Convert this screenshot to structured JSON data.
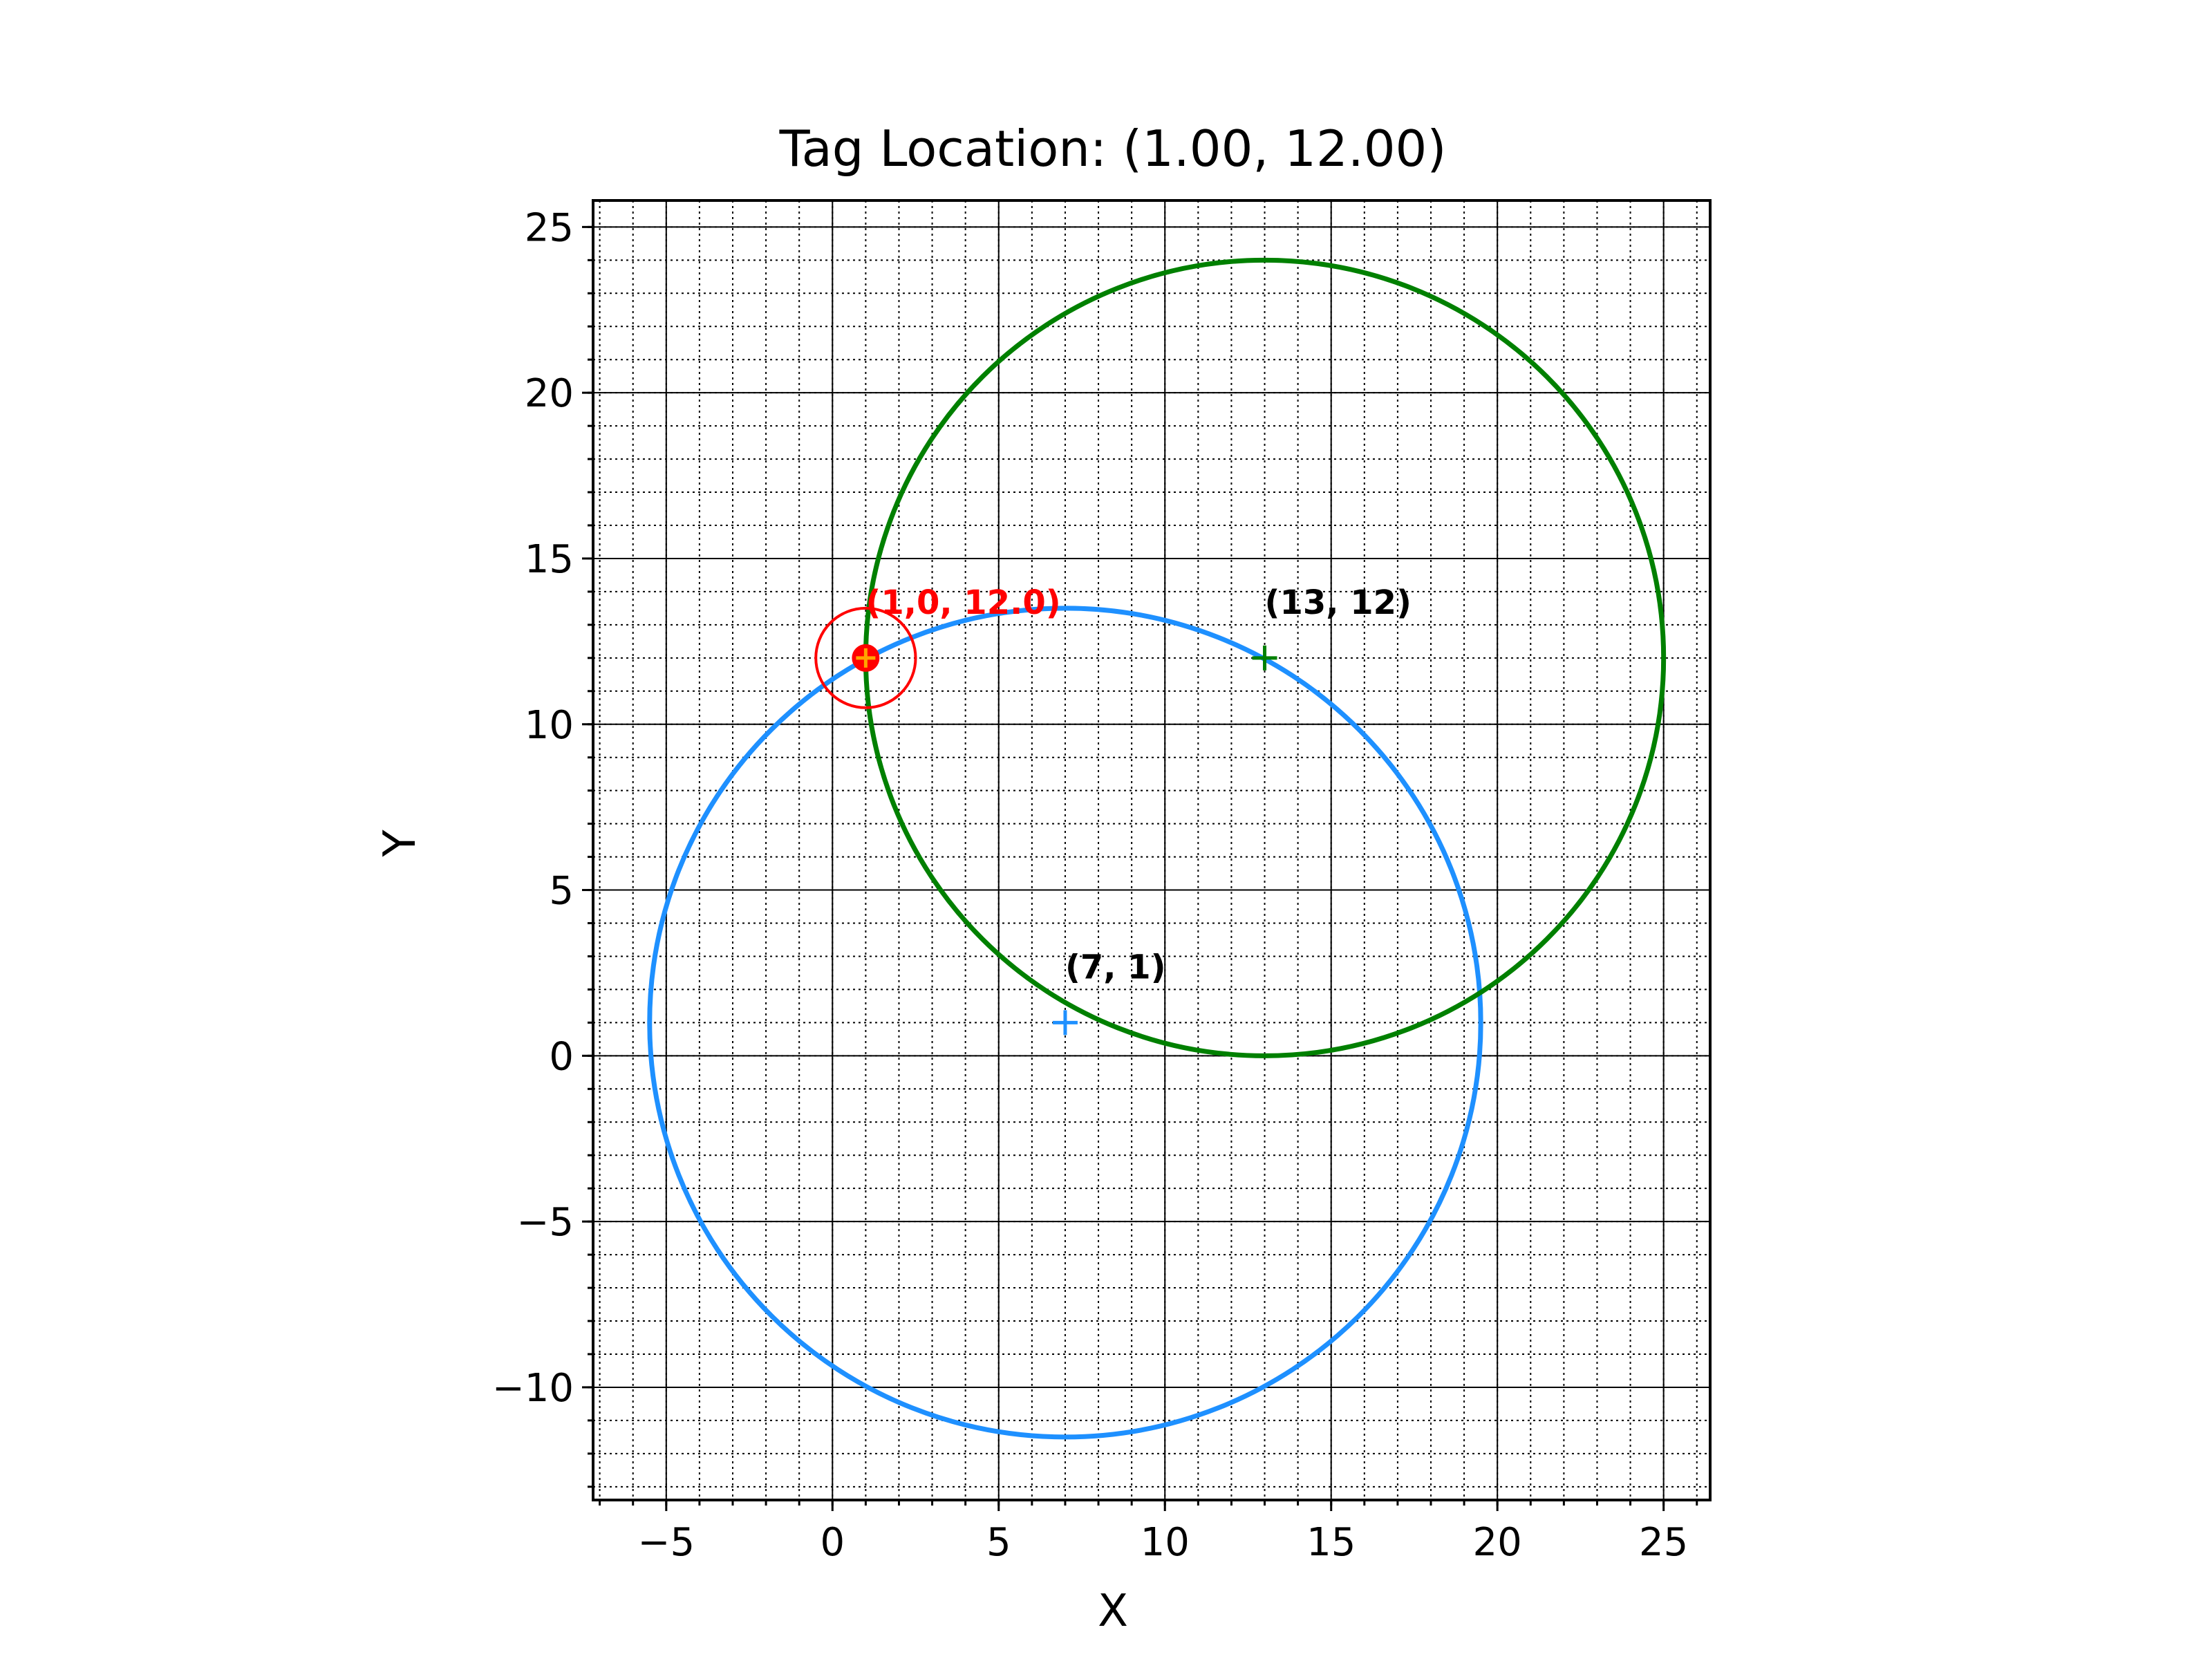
{
  "chart_data": {
    "type": "scatter",
    "title": "Tag Location: (1.00, 12.00)",
    "xlabel": "X",
    "ylabel": "Y",
    "xlim": [
      -7.2,
      26.4
    ],
    "ylim": [
      -13.4,
      25.8
    ],
    "xticks": [
      -5,
      0,
      5,
      10,
      15,
      20,
      25
    ],
    "yticks": [
      -10,
      -5,
      0,
      5,
      10,
      15,
      20,
      25
    ],
    "xtick_labels": [
      "−5",
      "0",
      "5",
      "10",
      "15",
      "20",
      "25"
    ],
    "ytick_labels": [
      "−10",
      "−5",
      "0",
      "5",
      "10",
      "15",
      "20",
      "25"
    ],
    "grid": {
      "major": true,
      "minor": true,
      "minor_step": 1
    },
    "anchors": [
      {
        "label": "(7, 1)",
        "x": 7,
        "y": 1,
        "range": 12.5,
        "color": "#1e90ff"
      },
      {
        "label": "(13, 12)",
        "x": 13,
        "y": 12,
        "range": 12.0,
        "color": "#008000"
      }
    ],
    "tag": {
      "x": 1.0,
      "y": 12.0,
      "label": "(1,0, 12.0)",
      "error_radius": 1.5,
      "color": "#ff0000",
      "marker_fill": "#ffa500"
    }
  }
}
